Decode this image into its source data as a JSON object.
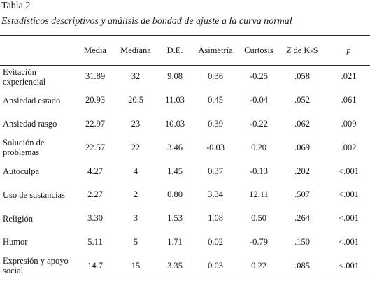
{
  "table": {
    "label": "Tabla 2",
    "caption": "Estadísticos descriptivos y análisis de bondad de ajuste a la curva normal",
    "headers": [
      "",
      "Media",
      "Mediana",
      "D.E.",
      "Asimetría",
      "Curtosis",
      "Z de K-S",
      "p"
    ],
    "rows": [
      [
        "Evitación experiencial",
        "31.89",
        "32",
        "9.08",
        "0.36",
        "-0.25",
        ".058",
        ".021"
      ],
      [
        "Ansiedad estado",
        "20.93",
        "20.5",
        "11.03",
        "0.45",
        "-0.04",
        ".052",
        ".061"
      ],
      [
        "Ansiedad rasgo",
        "22.97",
        "23",
        "10.03",
        "0.39",
        "-0.22",
        ".062",
        ".009"
      ],
      [
        "Solución de problemas",
        "22.57",
        "22",
        "3.46",
        "-0.03",
        "0.20",
        ".069",
        ".002"
      ],
      [
        "Autoculpa",
        "4.27",
        "4",
        "1.45",
        "0.37",
        "-0.13",
        ".202",
        "<.001"
      ],
      [
        "Uso de sustancias",
        "2.27",
        "2",
        "0.80",
        "3.34",
        "12.11",
        ".507",
        "<.001"
      ],
      [
        "Religión",
        "3.30",
        "3",
        "1.53",
        "1.08",
        "0.50",
        ".264",
        "<.001"
      ],
      [
        "Humor",
        "5.11",
        "5",
        "1.71",
        "0.02",
        "-0.79",
        ".150",
        "<.001"
      ],
      [
        "Expresión y apoyo social",
        "14.7",
        "15",
        "3.35",
        "0.03",
        "0.22",
        ".085",
        "<.001"
      ]
    ]
  }
}
